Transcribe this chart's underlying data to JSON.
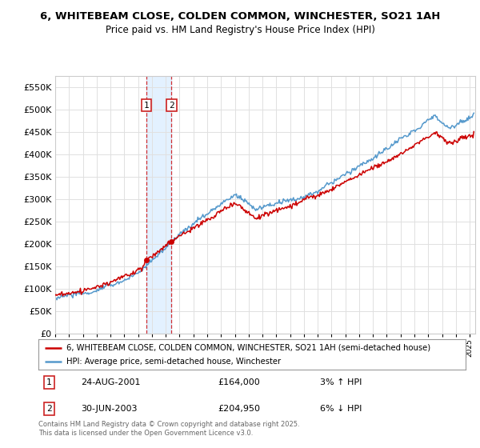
{
  "title": "6, WHITEBEAM CLOSE, COLDEN COMMON, WINCHESTER, SO21 1AH",
  "subtitle": "Price paid vs. HM Land Registry's House Price Index (HPI)",
  "legend_line1": "6, WHITEBEAM CLOSE, COLDEN COMMON, WINCHESTER, SO21 1AH (semi-detached house)",
  "legend_line2": "HPI: Average price, semi-detached house, Winchester",
  "sale1_date": "24-AUG-2001",
  "sale1_price": 164000,
  "sale1_label": "3% ↑ HPI",
  "sale2_date": "30-JUN-2003",
  "sale2_price": 204950,
  "sale2_label": "6% ↓ HPI",
  "footer": "Contains HM Land Registry data © Crown copyright and database right 2025.\nThis data is licensed under the Open Government Licence v3.0.",
  "red_color": "#cc0000",
  "blue_color": "#5599cc",
  "shade_color": "#ddeeff",
  "ylim": [
    0,
    575000
  ],
  "yticks": [
    0,
    50000,
    100000,
    150000,
    200000,
    250000,
    300000,
    350000,
    400000,
    450000,
    500000,
    550000
  ]
}
